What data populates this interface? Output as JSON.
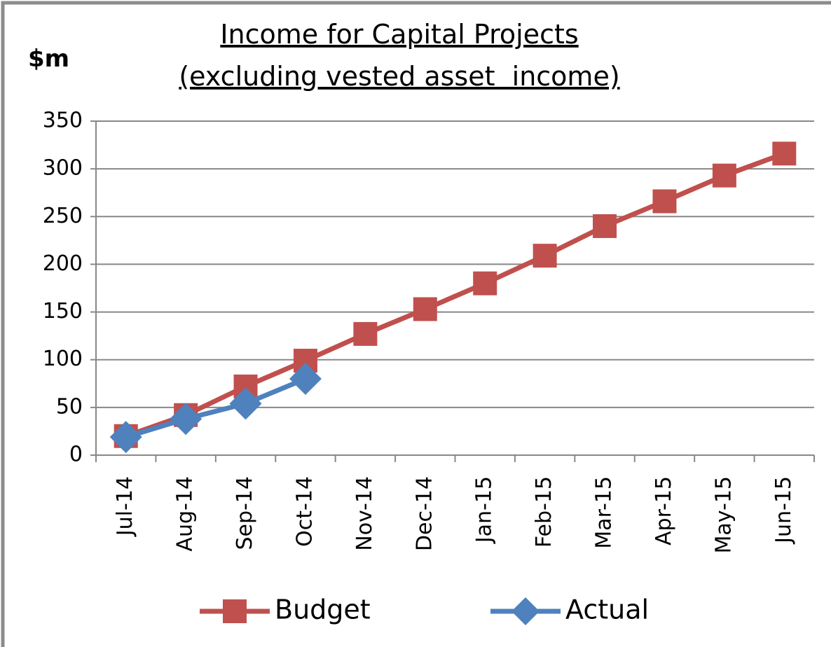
{
  "chart_data": {
    "type": "line",
    "title": "Income for Capital Projects",
    "subtitle": "(excluding vested asset  income)",
    "y_label": "$m",
    "categories": [
      "Jul-14",
      "Aug-14",
      "Sep-14",
      "Oct-14",
      "Nov-14",
      "Dec-14",
      "Jan-15",
      "Feb-15",
      "Mar-15",
      "Apr-15",
      "May-15",
      "Jun-15"
    ],
    "series": [
      {
        "name": "Budget",
        "color": "#c0504d",
        "marker": "square",
        "values": [
          20,
          42,
          72,
          99,
          127,
          153,
          180,
          209,
          240,
          266,
          293,
          316
        ]
      },
      {
        "name": "Actual",
        "color": "#4f81bd",
        "marker": "diamond",
        "values": [
          19,
          38,
          54,
          80,
          null,
          null,
          null,
          null,
          null,
          null,
          null,
          null
        ]
      }
    ],
    "ylim": [
      0,
      350
    ],
    "yticks": [
      0,
      50,
      100,
      150,
      200,
      250,
      300,
      350
    ],
    "grid": true,
    "legend": "bottom"
  }
}
